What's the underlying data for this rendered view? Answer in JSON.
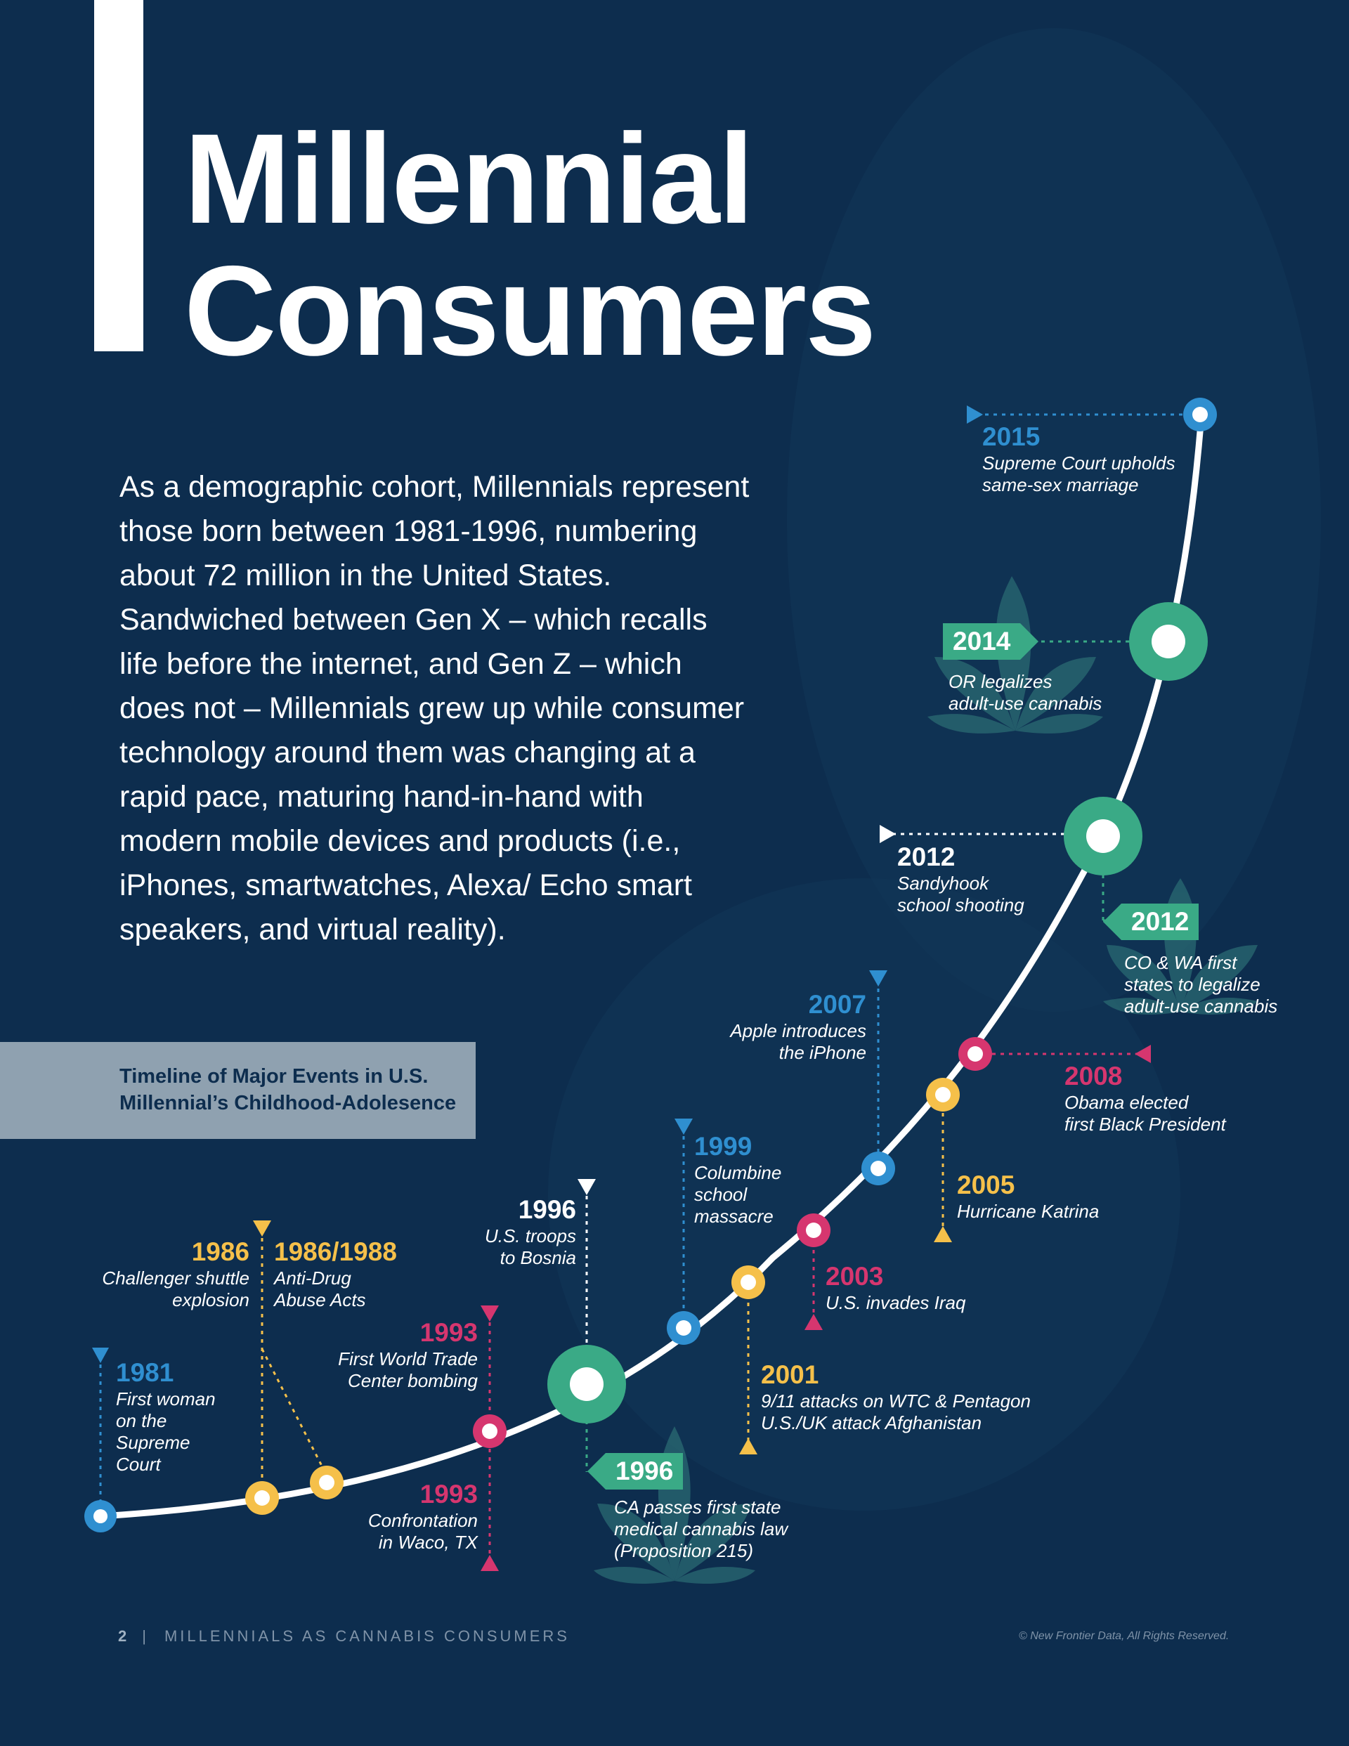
{
  "title": {
    "line1": "Millennial",
    "line2": "Consumers"
  },
  "intro": "As a demographic cohort, Millennials represent those born between 1981-1996, numbering about 72 million in the United States. Sandwiched between Gen X – which recalls life before the internet, and Gen Z – which does not – Millennials grew up while consumer technology around them was changing at a rapid pace, maturing hand-in-hand with modern mobile devices and products (i.e., iPhones, smartwatches, Alexa/ Echo smart speakers, and virtual reality).",
  "timeline_label": {
    "line1": "Timeline of Major Events in U.S.",
    "line2": "Millennial’s Childhood-Adolesence"
  },
  "events": {
    "e1981": {
      "year": "1981",
      "lines": [
        "First woman",
        "on the",
        "Supreme",
        "Court"
      ]
    },
    "e1986": {
      "year": "1986",
      "lines": [
        "Challenger shuttle",
        "explosion"
      ]
    },
    "e1986_88": {
      "year": "1986/1988",
      "lines": [
        "Anti-Drug",
        "Abuse Acts"
      ]
    },
    "e1993a": {
      "year": "1993",
      "lines": [
        "First World Trade",
        "Center bombing"
      ]
    },
    "e1993b": {
      "year": "1993",
      "lines": [
        "Confrontation",
        "in Waco, TX"
      ]
    },
    "e1996a": {
      "year": "1996",
      "lines": [
        "U.S. troops",
        "to Bosnia"
      ]
    },
    "e1996b": {
      "year": "1996",
      "lines": [
        "CA passes first state",
        "medical cannabis law",
        "(Proposition 215)"
      ]
    },
    "e1999": {
      "year": "1999",
      "lines": [
        "Columbine",
        "school",
        "massacre"
      ]
    },
    "e2001": {
      "year": "2001",
      "lines": [
        "9/11 attacks on WTC & Pentagon",
        "U.S./UK attack Afghanistan"
      ]
    },
    "e2003": {
      "year": "2003",
      "lines": [
        "U.S. invades Iraq"
      ]
    },
    "e2005": {
      "year": "2005",
      "lines": [
        "Hurricane Katrina"
      ]
    },
    "e2007": {
      "year": "2007",
      "lines": [
        "Apple introduces",
        "the iPhone"
      ]
    },
    "e2008": {
      "year": "2008",
      "lines": [
        "Obama elected",
        "first Black President"
      ]
    },
    "e2012a": {
      "year": "2012",
      "lines": [
        "Sandyhook",
        "school shooting"
      ]
    },
    "e2012b": {
      "year": "2012",
      "lines": [
        "CO & WA first",
        "states to legalize",
        "adult-use cannabis"
      ]
    },
    "e2014": {
      "year": "2014",
      "lines": [
        "OR legalizes",
        "adult-use cannabis"
      ]
    },
    "e2015": {
      "year": "2015",
      "lines": [
        "Supreme Court upholds",
        "same-sex marriage"
      ]
    }
  },
  "footer": {
    "page": "2",
    "separator": "|",
    "text": "MILLENNIALS AS CANNABIS CONSUMERS",
    "copyright": "© New Frontier Data, All Rights Reserved."
  },
  "colors": {
    "background": "#0d2d4e",
    "blue": "#2f8fd0",
    "pink": "#d6366f",
    "yellow": "#f5c04a",
    "green": "#3aaa86",
    "white": "#ffffff",
    "label_box": "#8fa1b0"
  }
}
